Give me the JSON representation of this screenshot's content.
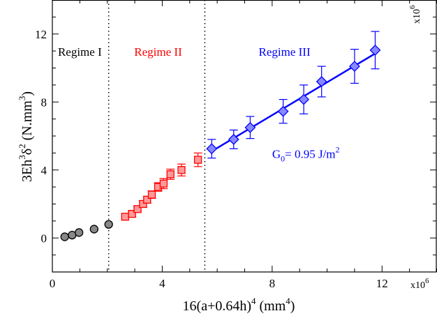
{
  "chart_data": {
    "type": "scatter",
    "title": "",
    "xlabel": "16(a+0.64h)",
    "xlabel_sup": "4",
    "xlabel_unit": " (mm",
    "xlabel_unit_sup": "4",
    "xlabel_close": ")",
    "ylabel_parts": [
      "3Eh",
      "3",
      "δ",
      "2",
      " (N.mm",
      "3",
      ")"
    ],
    "x_multiplier": "x10",
    "x_multiplier_exp": "6",
    "y_multiplier": "x10",
    "y_multiplier_exp": "6",
    "xlim": [
      0,
      14
    ],
    "ylim": [
      -2,
      14
    ],
    "x_ticks": [
      0,
      4,
      8,
      12
    ],
    "y_ticks": [
      0,
      4,
      8,
      12
    ],
    "x_tick_labels": [
      "0",
      "4",
      "8",
      "12"
    ],
    "y_tick_labels": [
      "0",
      "4",
      "8",
      "12"
    ],
    "grid": false,
    "vertical_lines": [
      2.05,
      5.55
    ],
    "regions": [
      {
        "label": "Regime I",
        "color": "#000000",
        "x": 1.0
      },
      {
        "label": "Regime II",
        "color": "#ff0000",
        "x": 3.85
      },
      {
        "label": "Regime III",
        "color": "#0000ff",
        "x": 8.45
      }
    ],
    "series": [
      {
        "marker": "circle",
        "color": "#000000",
        "fill": "#888888",
        "points": [
          {
            "x": 0.45,
            "y": 0.07,
            "err": 0.05
          },
          {
            "x": 0.72,
            "y": 0.17,
            "err": 0.05
          },
          {
            "x": 0.97,
            "y": 0.32,
            "err": 0.06
          },
          {
            "x": 1.52,
            "y": 0.52,
            "err": 0.07
          },
          {
            "x": 2.05,
            "y": 0.8,
            "err": 0.12
          }
        ]
      },
      {
        "marker": "square",
        "color": "#ff0000",
        "fill": "#ff9999",
        "points": [
          {
            "x": 2.65,
            "y": 1.25,
            "err": 0.12
          },
          {
            "x": 2.9,
            "y": 1.42,
            "err": 0.15
          },
          {
            "x": 3.1,
            "y": 1.7,
            "err": 0.15
          },
          {
            "x": 3.3,
            "y": 2.0,
            "err": 0.2
          },
          {
            "x": 3.45,
            "y": 2.25,
            "err": 0.2
          },
          {
            "x": 3.62,
            "y": 2.55,
            "err": 0.22
          },
          {
            "x": 3.85,
            "y": 3.0,
            "err": 0.25
          },
          {
            "x": 4.05,
            "y": 3.2,
            "err": 0.3
          },
          {
            "x": 4.3,
            "y": 3.75,
            "err": 0.3
          },
          {
            "x": 4.7,
            "y": 4.0,
            "err": 0.35
          },
          {
            "x": 5.3,
            "y": 4.6,
            "err": 0.4
          }
        ]
      },
      {
        "marker": "diamond",
        "color": "#0000ff",
        "fill": "#8888ff",
        "points": [
          {
            "x": 5.8,
            "y": 5.25,
            "err": 0.55
          },
          {
            "x": 6.6,
            "y": 5.8,
            "err": 0.55
          },
          {
            "x": 7.2,
            "y": 6.5,
            "err": 0.65
          },
          {
            "x": 8.4,
            "y": 7.45,
            "err": 0.7
          },
          {
            "x": 9.15,
            "y": 8.15,
            "err": 0.85
          },
          {
            "x": 9.8,
            "y": 9.2,
            "err": 0.9
          },
          {
            "x": 11.0,
            "y": 10.1,
            "err": 1.0
          },
          {
            "x": 11.75,
            "y": 11.05,
            "err": 1.1
          }
        ]
      }
    ],
    "fit_line": {
      "color": "#0000ff",
      "x": [
        5.8,
        11.8
      ],
      "y": [
        5.1,
        10.9
      ]
    },
    "annotation": {
      "text_main": "G",
      "text_sub": "0",
      "text_rest": "= 0.95 J/m",
      "text_sup": "2",
      "color": "#0000ff",
      "x": 8.0,
      "y": 4.7
    }
  }
}
